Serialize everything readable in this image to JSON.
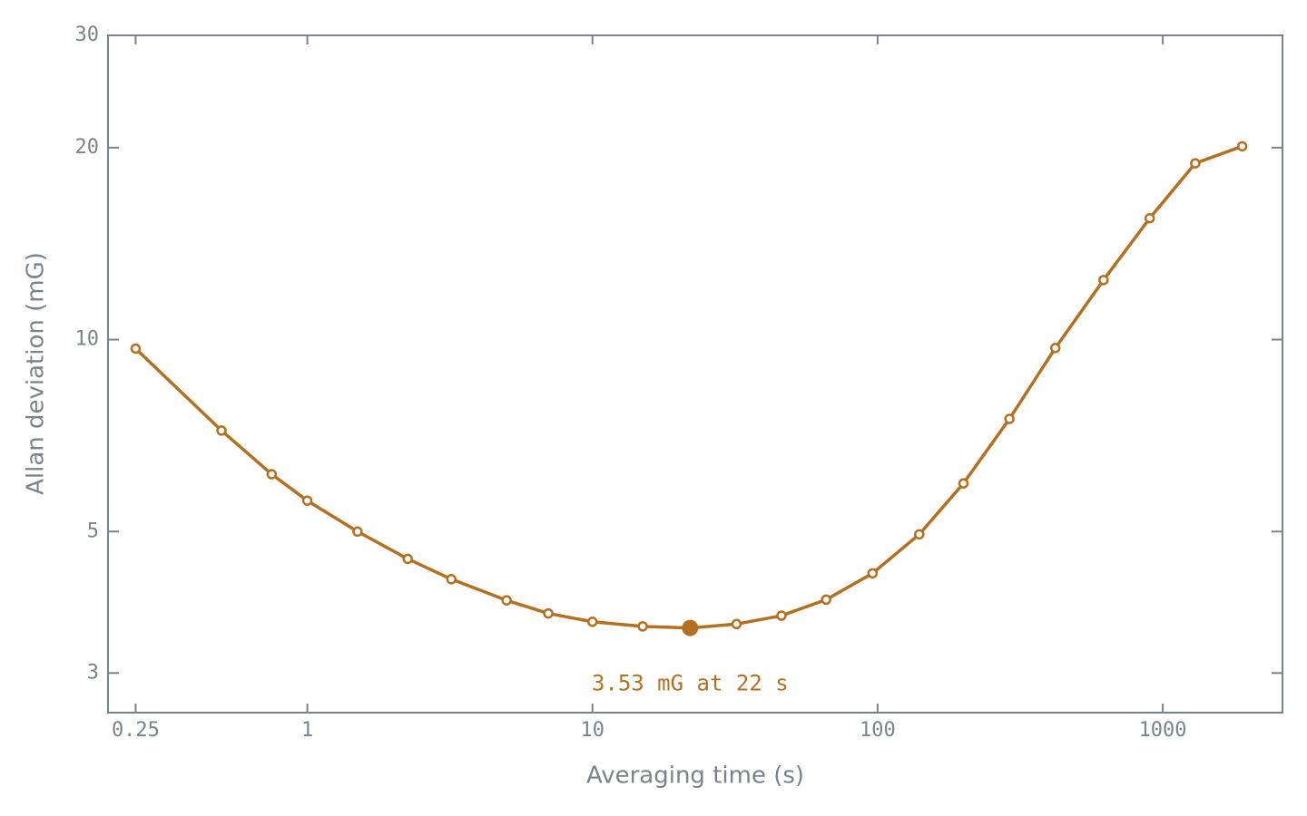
{
  "chart_data": {
    "type": "line",
    "xlabel": "Averaging time (s)",
    "ylabel": "Allan deviation (mG)",
    "xscale": "log",
    "yscale": "log",
    "x": [
      0.25,
      0.5,
      0.75,
      1,
      1.5,
      2.25,
      3.2,
      5,
      7,
      10,
      15,
      22,
      32,
      46,
      66,
      96,
      140,
      200,
      290,
      420,
      620,
      900,
      1300,
      1900
    ],
    "series": [
      {
        "color": "#b5701f",
        "values": [
          9.68,
          7.2,
          6.15,
          5.59,
          5.0,
          4.53,
          4.21,
          3.9,
          3.72,
          3.61,
          3.55,
          3.53,
          3.58,
          3.69,
          3.91,
          4.3,
          4.95,
          5.95,
          7.51,
          9.7,
          12.4,
          15.5,
          18.9,
          20.1
        ]
      }
    ],
    "xlim": [
      0.2,
      2630
    ],
    "ylim": [
      2.6,
      30
    ],
    "xticks": [
      0.25,
      1,
      10,
      100,
      1000
    ],
    "yticks": [
      3,
      5,
      10,
      20,
      30
    ],
    "annotation": {
      "text": "3.53 mG at 22 s",
      "x": 22,
      "y": 3.53
    }
  }
}
